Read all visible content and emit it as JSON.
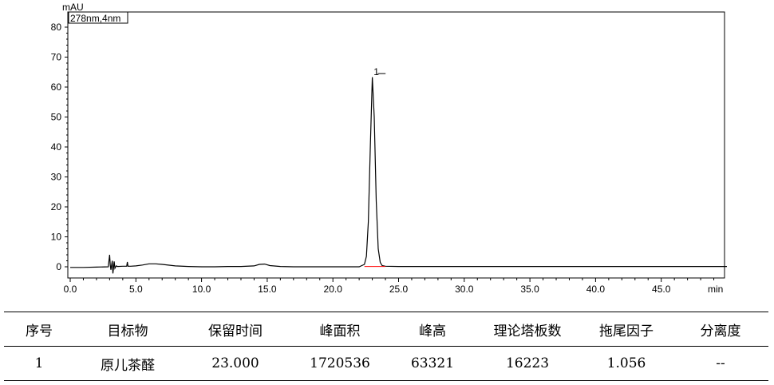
{
  "chart_data": {
    "type": "line",
    "ylabel": "mAU",
    "xlabel": "min",
    "legend": "278nm,4nm",
    "xlim": [
      0,
      50
    ],
    "ylim": [
      -3,
      85
    ],
    "x_ticks": [
      0,
      5,
      10,
      15,
      20,
      25,
      30,
      35,
      40,
      45
    ],
    "x_tick_labels": [
      "0.0",
      "5.0",
      "10.0",
      "15.0",
      "20.0",
      "25.0",
      "30.0",
      "35.0",
      "40.0",
      "45.0"
    ],
    "y_ticks": [
      0,
      10,
      20,
      30,
      40,
      50,
      60,
      70,
      80
    ],
    "y_tick_labels": [
      "0",
      "10",
      "20",
      "30",
      "40",
      "50",
      "60",
      "70",
      "80"
    ],
    "peak_label": "1",
    "peak_label_x": 23.1,
    "peak_label_y": 64.5,
    "series": [
      {
        "color": "#000000",
        "x": [
          0,
          1,
          2,
          2.9,
          3.0,
          3.05,
          3.1,
          3.2,
          3.25,
          3.35,
          3.4,
          3.5,
          3.6,
          4.0,
          4.3,
          4.35,
          4.4,
          4.6,
          5.0,
          5.5,
          6.0,
          6.5,
          7.0,
          8.0,
          9.0,
          10.0,
          11.0,
          12.0,
          13.0,
          14.0,
          14.4,
          14.8,
          15.2,
          16.0,
          17.0,
          18.0,
          19.0,
          20.0,
          21.0,
          22.0,
          22.4,
          22.55,
          22.7,
          22.85,
          23.0,
          23.15,
          23.3,
          23.45,
          23.6,
          23.75,
          24.0,
          25.0,
          30.0,
          35.0,
          40.0,
          45.0,
          50.0
        ],
        "y": [
          -0.2,
          -0.2,
          -0.1,
          0,
          4.0,
          0.5,
          -1.0,
          2.0,
          -2.2,
          1.8,
          -0.5,
          0.3,
          0.1,
          0.2,
          0.2,
          1.6,
          0.2,
          0.2,
          0.3,
          0.6,
          1.0,
          1.0,
          0.8,
          0.3,
          0.1,
          0.0,
          0.0,
          0.1,
          0.1,
          0.3,
          0.8,
          0.9,
          0.4,
          0.1,
          0.0,
          0.0,
          0.0,
          0.0,
          0.0,
          0.0,
          0.8,
          3.5,
          15.0,
          40.0,
          63.3,
          50.0,
          22.0,
          6.0,
          1.5,
          0.4,
          0.2,
          0.1,
          0.1,
          0.1,
          0.1,
          0.1,
          0.1
        ]
      },
      {
        "name": "baseline",
        "color": "#ff0000",
        "x": [
          22.4,
          24.0
        ],
        "y": [
          0.1,
          0.1
        ]
      }
    ]
  },
  "table": {
    "headers": [
      "序号",
      "目标物",
      "保留时间",
      "峰面积",
      "峰高",
      "理论塔板数",
      "拖尾因子",
      "分离度"
    ],
    "rows": [
      [
        "1",
        "原儿茶醛",
        "23.000",
        "1720536",
        "63321",
        "16223",
        "1.056",
        "--"
      ]
    ]
  }
}
